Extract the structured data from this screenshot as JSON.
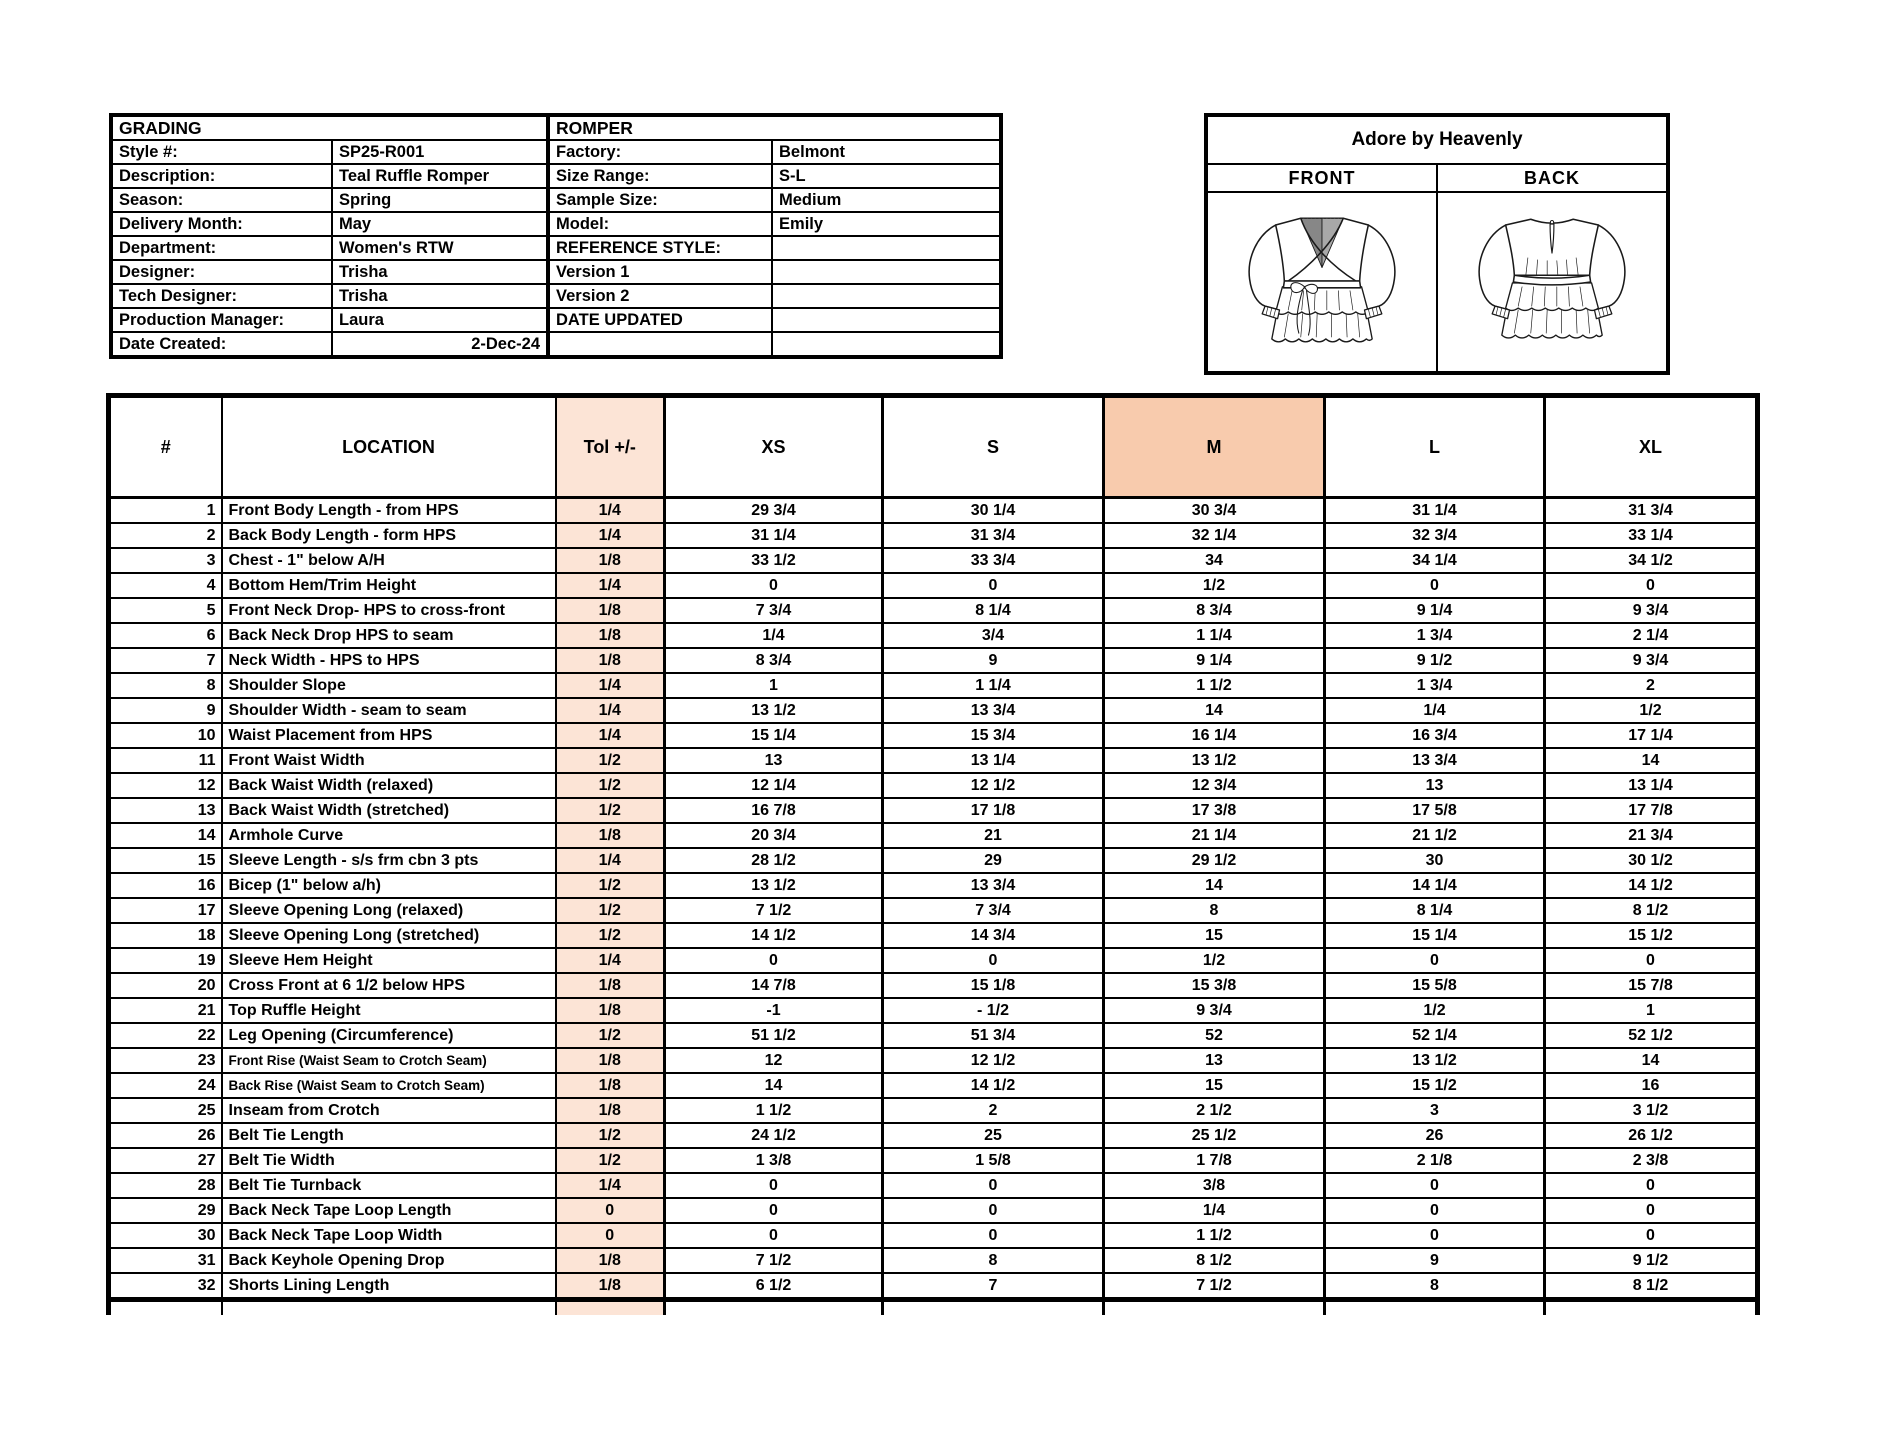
{
  "grading_info": {
    "title": "GRADING",
    "rows": [
      {
        "label": "Style #:",
        "value": "SP25-R001"
      },
      {
        "label": "Description:",
        "value": "Teal Ruffle Romper"
      },
      {
        "label": "Season:",
        "value": "Spring"
      },
      {
        "label": "Delivery Month:",
        "value": "May"
      },
      {
        "label": "Department:",
        "value": "Women's RTW"
      },
      {
        "label": "Designer:",
        "value": "Trisha"
      },
      {
        "label": "Tech Designer:",
        "value": "Trisha"
      },
      {
        "label": "Production Manager:",
        "value": "Laura"
      },
      {
        "label": "Date Created:",
        "value": "2-Dec-24",
        "align": "right"
      }
    ]
  },
  "romper_info": {
    "title": "ROMPER",
    "rows": [
      {
        "label": "Factory:",
        "value": "Belmont"
      },
      {
        "label": "Size Range:",
        "value": "S-L"
      },
      {
        "label": "Sample Size:",
        "value": "Medium"
      },
      {
        "label": "Model:",
        "value": "Emily"
      },
      {
        "label": "REFERENCE STYLE:",
        "value": ""
      },
      {
        "label": "Version 1",
        "value": ""
      },
      {
        "label": "Version 2",
        "value": ""
      },
      {
        "label": "DATE UPDATED",
        "value": ""
      },
      {
        "label": "",
        "value": ""
      }
    ]
  },
  "brand_box": {
    "brand": "Adore by Heavenly",
    "front_label": "FRONT",
    "back_label": "BACK"
  },
  "spec_table": {
    "headers": [
      "#",
      "LOCATION",
      "Tol +/-",
      "XS",
      "S",
      "M",
      "L",
      "XL"
    ],
    "highlighted_size": "M",
    "colors": {
      "tol_fill": "#FCE4D6",
      "m_header_fill": "#F8CBAD"
    },
    "rows": [
      {
        "num": "1",
        "location": "Front Body Length - from HPS",
        "tol": "1/4",
        "xs": "29 3/4",
        "s": "30 1/4",
        "m": "30 3/4",
        "l": "31 1/4",
        "xl": "31 3/4"
      },
      {
        "num": "2",
        "location": "Back Body Length - form HPS",
        "tol": "1/4",
        "xs": "31 1/4",
        "s": "31 3/4",
        "m": "32 1/4",
        "l": "32 3/4",
        "xl": "33 1/4"
      },
      {
        "num": "3",
        "location": "Chest - 1\" below A/H",
        "tol": "1/8",
        "xs": "33 1/2",
        "s": "33 3/4",
        "m": "34",
        "l": "34 1/4",
        "xl": "34 1/2"
      },
      {
        "num": "4",
        "location": "Bottom Hem/Trim Height",
        "tol": "1/4",
        "xs": "0",
        "s": "0",
        "m": "1/2",
        "l": "0",
        "xl": "0"
      },
      {
        "num": "5",
        "location": "Front Neck Drop- HPS to cross-front",
        "tol": "1/8",
        "xs": "7 3/4",
        "s": "8 1/4",
        "m": "8 3/4",
        "l": "9 1/4",
        "xl": "9 3/4"
      },
      {
        "num": "6",
        "location": "Back Neck Drop HPS to seam",
        "tol": "1/8",
        "xs": "1/4",
        "s": "3/4",
        "m": "1 1/4",
        "l": "1 3/4",
        "xl": "2 1/4"
      },
      {
        "num": "7",
        "location": "Neck Width - HPS to HPS",
        "tol": "1/8",
        "xs": "8 3/4",
        "s": "9",
        "m": "9 1/4",
        "l": "9 1/2",
        "xl": "9 3/4"
      },
      {
        "num": "8",
        "location": "Shoulder Slope",
        "tol": "1/4",
        "xs": "1",
        "s": "1 1/4",
        "m": "1 1/2",
        "l": "1 3/4",
        "xl": "2"
      },
      {
        "num": "9",
        "location": "Shoulder Width - seam to seam",
        "tol": "1/4",
        "xs": "13 1/2",
        "s": "13 3/4",
        "m": "14",
        "l": "1/4",
        "xl": "1/2"
      },
      {
        "num": "10",
        "location": "Waist Placement from HPS",
        "tol": "1/4",
        "xs": "15 1/4",
        "s": "15 3/4",
        "m": "16 1/4",
        "l": "16 3/4",
        "xl": "17 1/4"
      },
      {
        "num": "11",
        "location": "Front Waist Width",
        "tol": "1/2",
        "xs": "13",
        "s": "13 1/4",
        "m": "13 1/2",
        "l": "13 3/4",
        "xl": "14"
      },
      {
        "num": "12",
        "location": "Back Waist Width (relaxed)",
        "tol": "1/2",
        "xs": "12 1/4",
        "s": "12 1/2",
        "m": "12 3/4",
        "l": "13",
        "xl": "13 1/4"
      },
      {
        "num": "13",
        "location": "Back Waist Width (stretched)",
        "tol": "1/2",
        "xs": "16 7/8",
        "s": "17 1/8",
        "m": "17 3/8",
        "l": "17 5/8",
        "xl": "17 7/8"
      },
      {
        "num": "14",
        "location": "Armhole Curve",
        "tol": "1/8",
        "xs": "20 3/4",
        "s": "21",
        "m": "21 1/4",
        "l": "21 1/2",
        "xl": "21 3/4"
      },
      {
        "num": "15",
        "location": "Sleeve Length - s/s frm cbn 3 pts",
        "tol": "1/4",
        "xs": "28 1/2",
        "s": "29",
        "m": "29 1/2",
        "l": "30",
        "xl": "30 1/2"
      },
      {
        "num": "16",
        "location": "Bicep (1\" below a/h)",
        "tol": "1/2",
        "xs": "13 1/2",
        "s": "13 3/4",
        "m": "14",
        "l": "14 1/4",
        "xl": "14 1/2"
      },
      {
        "num": "17",
        "location": "Sleeve Opening Long (relaxed)",
        "tol": "1/2",
        "xs": "7 1/2",
        "s": "7 3/4",
        "m": "8",
        "l": "8 1/4",
        "xl": "8 1/2"
      },
      {
        "num": "18",
        "location": "Sleeve Opening Long (stretched)",
        "tol": "1/2",
        "xs": "14 1/2",
        "s": "14 3/4",
        "m": "15",
        "l": "15 1/4",
        "xl": "15 1/2"
      },
      {
        "num": "19",
        "location": "Sleeve Hem Height",
        "tol": "1/4",
        "xs": "0",
        "s": "0",
        "m": "1/2",
        "l": "0",
        "xl": "0"
      },
      {
        "num": "20",
        "location": "Cross Front at 6 1/2 below HPS",
        "tol": "1/8",
        "xs": "14 7/8",
        "s": "15 1/8",
        "m": "15 3/8",
        "l": "15 5/8",
        "xl": "15 7/8"
      },
      {
        "num": "21",
        "location": "Top Ruffle Height",
        "tol": "1/8",
        "xs": "-1",
        "s": "- 1/2",
        "m": "9 3/4",
        "l": "1/2",
        "xl": "1"
      },
      {
        "num": "22",
        "location": "Leg Opening (Circumference)",
        "tol": "1/2",
        "xs": "51 1/2",
        "s": "51 3/4",
        "m": "52",
        "l": "52 1/4",
        "xl": "52 1/2"
      },
      {
        "num": "23",
        "location": "Front Rise (Waist Seam to Crotch Seam)",
        "tol": "1/8",
        "xs": "12",
        "s": "12 1/2",
        "m": "13",
        "l": "13 1/2",
        "xl": "14"
      },
      {
        "num": "24",
        "location": "Back Rise (Waist Seam to Crotch Seam)",
        "tol": "1/8",
        "xs": "14",
        "s": "14 1/2",
        "m": "15",
        "l": "15 1/2",
        "xl": "16"
      },
      {
        "num": "25",
        "location": "Inseam from Crotch",
        "tol": "1/8",
        "xs": "1 1/2",
        "s": "2",
        "m": "2 1/2",
        "l": "3",
        "xl": "3 1/2"
      },
      {
        "num": "26",
        "location": "Belt Tie Length",
        "tol": "1/2",
        "xs": "24 1/2",
        "s": "25",
        "m": "25 1/2",
        "l": "26",
        "xl": "26 1/2"
      },
      {
        "num": "27",
        "location": "Belt Tie Width",
        "tol": "1/2",
        "xs": "1 3/8",
        "s": "1 5/8",
        "m": "1 7/8",
        "l": "2 1/8",
        "xl": "2 3/8"
      },
      {
        "num": "28",
        "location": "Belt Tie Turnback",
        "tol": "1/4",
        "xs": "0",
        "s": "0",
        "m": "3/8",
        "l": "0",
        "xl": "0"
      },
      {
        "num": "29",
        "location": "Back Neck Tape Loop Length",
        "tol": "0",
        "xs": "0",
        "s": "0",
        "m": "1/4",
        "l": "0",
        "xl": "0"
      },
      {
        "num": "30",
        "location": "Back Neck Tape Loop Width",
        "tol": "0",
        "xs": "0",
        "s": "0",
        "m": "1 1/2",
        "l": "0",
        "xl": "0"
      },
      {
        "num": "31",
        "location": "Back Keyhole Opening Drop",
        "tol": "1/8",
        "xs": "7 1/2",
        "s": "8",
        "m": "8 1/2",
        "l": "9",
        "xl": "9 1/2"
      },
      {
        "num": "32",
        "location": "Shorts Lining Length",
        "tol": "1/8",
        "xs": "6 1/2",
        "s": "7",
        "m": "7 1/2",
        "l": "8",
        "xl": "8 1/2"
      }
    ]
  }
}
